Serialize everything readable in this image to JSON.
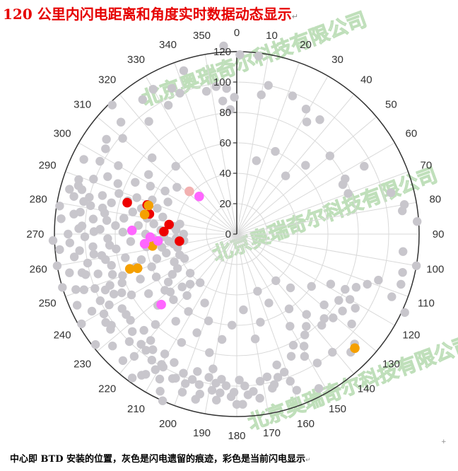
{
  "title": "120 公里内闪电距离和角度实时数据动态显示",
  "title_mark": "↵",
  "caption": "中心即 BTD 安装的位置，灰色是闪电遗留的痕迹，彩色是当前闪电显示",
  "caption_mark": "↵",
  "stray_mark": "+",
  "watermarks": [
    "北京奥瑞奇尔科技有限公司",
    "北京奥瑞奇尔科技有限公司",
    "北京奥瑞奇尔科技有限公司"
  ],
  "colors": {
    "axis": "#333333",
    "grid": "#d9d9d9",
    "history": "#c8c6cc",
    "red": "#ee0000",
    "orange": "#f5a000",
    "magenta": "#ff66ff",
    "pink": "#f2b0b0"
  },
  "chart_data": {
    "type": "scatter",
    "coordinate_system": "polar",
    "angle_unit": "degrees, 0 at top, clockwise",
    "angle_ticks": [
      "0",
      "10",
      "20",
      "30",
      "40",
      "50",
      "60",
      "70",
      "80",
      "90",
      "100",
      "110",
      "120",
      "130",
      "140",
      "150",
      "160",
      "170",
      "180",
      "190",
      "200",
      "210",
      "220",
      "230",
      "240",
      "250",
      "260",
      "270",
      "280",
      "290",
      "300",
      "310",
      "320",
      "330",
      "340",
      "350"
    ],
    "radius_ticks": [
      "0",
      "20",
      "40",
      "60",
      "80",
      "100",
      "120"
    ],
    "radius_range": [
      0,
      120
    ],
    "grid": true,
    "legend": "none",
    "series": [
      {
        "color_key": "history",
        "points": [
          [
            356,
            124
          ],
          [
            1,
            118
          ],
          [
            7,
            118
          ],
          [
            10,
            93
          ],
          [
            12,
            100
          ],
          [
            22,
            98
          ],
          [
            29,
            94
          ],
          [
            32,
            87
          ],
          [
            36,
            93
          ],
          [
            45,
            64
          ],
          [
            50,
            80
          ],
          [
            62,
            95
          ],
          [
            63,
            80
          ],
          [
            65,
            77
          ],
          [
            70,
            78
          ],
          [
            75,
            105
          ],
          [
            80,
            112
          ],
          [
            82,
            110
          ],
          [
            86,
            119
          ],
          [
            96,
            110
          ],
          [
            100,
            120
          ],
          [
            103,
            112
          ],
          [
            107,
            113
          ],
          [
            112,
            110
          ],
          [
            115,
            122
          ],
          [
            122,
            92
          ],
          [
            128,
            96
          ],
          [
            133,
            106
          ],
          [
            136,
            108
          ],
          [
            141,
            100
          ],
          [
            148,
            100
          ],
          [
            152,
            115
          ],
          [
            160,
            103
          ],
          [
            163,
            90
          ],
          [
            167,
            104
          ],
          [
            172,
            109
          ],
          [
            176,
            106
          ],
          [
            178,
            112
          ],
          [
            180,
            112
          ],
          [
            182,
            107
          ],
          [
            186,
            105
          ],
          [
            186,
            96
          ],
          [
            188,
            99
          ],
          [
            190,
            90
          ],
          [
            193,
            108
          ],
          [
            194,
            112
          ],
          [
            197,
            100
          ],
          [
            199,
            110
          ],
          [
            203,
            103
          ],
          [
            204,
            120
          ],
          [
            206,
            115
          ],
          [
            208,
            108
          ],
          [
            210,
            99
          ],
          [
            211,
            104
          ],
          [
            213,
            110
          ],
          [
            214,
            112
          ],
          [
            216,
            117
          ],
          [
            218,
            97
          ],
          [
            220,
            105
          ],
          [
            222,
            112
          ],
          [
            225,
            100
          ],
          [
            228,
            110
          ],
          [
            232,
            118
          ],
          [
            233,
            104
          ],
          [
            236,
            104
          ],
          [
            240,
            118
          ],
          [
            242,
            108
          ],
          [
            244,
            100
          ],
          [
            246,
            115
          ],
          [
            247,
            94
          ],
          [
            250,
            107
          ],
          [
            251,
            112
          ],
          [
            253,
            120
          ],
          [
            255,
            103
          ],
          [
            257,
            113
          ],
          [
            260,
            120
          ],
          [
            262,
            108
          ],
          [
            264,
            104
          ],
          [
            265,
            117
          ],
          [
            268,
            121
          ],
          [
            270,
            111
          ],
          [
            272,
            104
          ],
          [
            275,
            116
          ],
          [
            277,
            108
          ],
          [
            279,
            118
          ],
          [
            282,
            103
          ],
          [
            283,
            110
          ],
          [
            285,
            114
          ],
          [
            287,
            109
          ],
          [
            289,
            110
          ],
          [
            291,
            101
          ],
          [
            294,
            93
          ],
          [
            296,
            112
          ],
          [
            298,
            102
          ],
          [
            300,
            90
          ],
          [
            303,
            103
          ],
          [
            306,
            106
          ],
          [
            310,
            98
          ],
          [
            314,
            106
          ],
          [
            316,
            118
          ],
          [
            322,
            94
          ],
          [
            325,
            108
          ],
          [
            330,
            110
          ],
          [
            332,
            96
          ],
          [
            336,
            105
          ],
          [
            338,
            100
          ],
          [
            342,
            113
          ],
          [
            348,
            96
          ],
          [
            352,
            98
          ],
          [
            356,
            96
          ],
          [
            359,
            90
          ],
          [
            357,
            82
          ],
          [
            354,
            88
          ],
          [
            15,
            50
          ],
          [
            25,
            60
          ],
          [
            40,
            50
          ],
          [
            118,
            70
          ],
          [
            125,
            60
          ],
          [
            135,
            50
          ],
          [
            140,
            40
          ],
          [
            145,
            60
          ],
          [
            150,
            70
          ],
          [
            155,
            50
          ],
          [
            160,
            40
          ],
          [
            165,
            60
          ],
          [
            170,
            70
          ],
          [
            175,
            50
          ],
          [
            183,
            60
          ],
          [
            188,
            70
          ],
          [
            193,
            80
          ],
          [
            198,
            60
          ],
          [
            202,
            70
          ],
          [
            205,
            50
          ],
          [
            207,
            80
          ],
          [
            212,
            60
          ],
          [
            215,
            70
          ],
          [
            217,
            40
          ],
          [
            222,
            80
          ],
          [
            224,
            60
          ],
          [
            226,
            50
          ],
          [
            228,
            70
          ],
          [
            230,
            40
          ],
          [
            232,
            60
          ],
          [
            234,
            90
          ],
          [
            236,
            70
          ],
          [
            238,
            50
          ],
          [
            240,
            80
          ],
          [
            242,
            60
          ],
          [
            243,
            85
          ],
          [
            245,
            70
          ],
          [
            246,
            45
          ],
          [
            248,
            90
          ],
          [
            249,
            60
          ],
          [
            250,
            80
          ],
          [
            252,
            70
          ],
          [
            253,
            55
          ],
          [
            254,
            95
          ],
          [
            255,
            65
          ],
          [
            256,
            85
          ],
          [
            257,
            40
          ],
          [
            258,
            75
          ],
          [
            259,
            100
          ],
          [
            260,
            50
          ],
          [
            261,
            90
          ],
          [
            262,
            60
          ],
          [
            263,
            80
          ],
          [
            264,
            45
          ],
          [
            265,
            95
          ],
          [
            266,
            70
          ],
          [
            267,
            55
          ],
          [
            268,
            85
          ],
          [
            269,
            100
          ],
          [
            270,
            60
          ],
          [
            271,
            75
          ],
          [
            272,
            90
          ],
          [
            273,
            50
          ],
          [
            274,
            80
          ],
          [
            275,
            65
          ],
          [
            276,
            95
          ],
          [
            277,
            55
          ],
          [
            278,
            75
          ],
          [
            279,
            88
          ],
          [
            280,
            60
          ],
          [
            281,
            98
          ],
          [
            282,
            70
          ],
          [
            283,
            50
          ],
          [
            284,
            85
          ],
          [
            285,
            65
          ],
          [
            286,
            92
          ],
          [
            287,
            75
          ],
          [
            288,
            55
          ],
          [
            289,
            82
          ],
          [
            290,
            70
          ],
          [
            292,
            60
          ],
          [
            293,
            85
          ],
          [
            295,
            50
          ],
          [
            297,
            75
          ],
          [
            299,
            65
          ],
          [
            301,
            55
          ],
          [
            304,
            70
          ],
          [
            308,
            50
          ],
          [
            312,
            75
          ],
          [
            318,
            60
          ],
          [
            263,
            35
          ],
          [
            266,
            40
          ],
          [
            270,
            35
          ],
          [
            274,
            40
          ],
          [
            277,
            42
          ],
          [
            280,
            38
          ],
          [
            268,
            48
          ],
          [
            261,
            42
          ],
          [
            255,
            48
          ],
          [
            250,
            40
          ],
          [
            245,
            38
          ],
          [
            240,
            45
          ],
          [
            235,
            55
          ],
          [
            229,
            58
          ],
          [
            223,
            45
          ],
          [
            219,
            52
          ],
          [
            256,
            105
          ],
          [
            259,
            88
          ],
          [
            262,
            95
          ],
          [
            265,
            84
          ],
          [
            267,
            110
          ],
          [
            271,
            94
          ],
          [
            273,
            102
          ],
          [
            276,
            86
          ],
          [
            278,
            104
          ],
          [
            281,
            90
          ],
          [
            284,
            100
          ],
          [
            286,
            106
          ],
          [
            252,
            86
          ],
          [
            249,
            100
          ],
          [
            247,
            82
          ],
          [
            244,
            90
          ],
          [
            241,
            96
          ],
          [
            239,
            102
          ],
          [
            237,
            90
          ],
          [
            234,
            102
          ],
          [
            231,
            90
          ],
          [
            227,
            94
          ],
          [
            224,
            88
          ],
          [
            221,
            96
          ],
          [
            219,
            90
          ],
          [
            216,
            94
          ],
          [
            214,
            100
          ],
          [
            211,
            92
          ],
          [
            209,
            100
          ],
          [
            206,
            94
          ],
          [
            204,
            104
          ],
          [
            201,
            98
          ],
          [
            199,
            104
          ],
          [
            196,
            94
          ],
          [
            194,
            102
          ],
          [
            191,
            96
          ],
          [
            189,
            104
          ],
          [
            187,
            110
          ],
          [
            184,
            100
          ],
          [
            181,
            104
          ],
          [
            179,
            96
          ],
          [
            177,
            100
          ],
          [
            174,
            104
          ],
          [
            171,
            98
          ],
          [
            168,
            96
          ],
          [
            166,
            102
          ],
          [
            164,
            98
          ],
          [
            161,
            96
          ],
          [
            159,
            110
          ],
          [
            156,
            88
          ],
          [
            153,
            82
          ],
          [
            151,
            92
          ],
          [
            149,
            86
          ],
          [
            146,
            80
          ],
          [
            143,
            76
          ],
          [
            139,
            70
          ],
          [
            137,
            82
          ],
          [
            134,
            80
          ],
          [
            131,
            84
          ],
          [
            129,
            74
          ],
          [
            126,
            86
          ],
          [
            123,
            80
          ],
          [
            120,
            86
          ],
          [
            117,
            80
          ],
          [
            114,
            86
          ],
          [
            111,
            92
          ],
          [
            108,
            98
          ]
        ]
      },
      {
        "color_key": "red",
        "points": [
          [
            286,
            75
          ],
          [
            283,
            59
          ],
          [
            278,
            45
          ],
          [
            288,
            62
          ],
          [
            272,
            48
          ],
          [
            263,
            38
          ]
        ]
      },
      {
        "color_key": "orange",
        "points": [
          [
            282,
            62
          ],
          [
            288,
            61
          ],
          [
            262,
            56
          ],
          [
            252,
            74
          ],
          [
            251,
            69
          ],
          [
            134,
            108
          ]
        ]
      },
      {
        "color_key": "magenta",
        "points": [
          [
            272,
            69
          ],
          [
            268,
            57
          ],
          [
            265,
            52
          ],
          [
            264,
            61
          ],
          [
            227,
            68
          ],
          [
            315,
            35
          ]
        ]
      },
      {
        "color_key": "pink",
        "points": [
          [
            312,
            42
          ]
        ]
      }
    ]
  }
}
